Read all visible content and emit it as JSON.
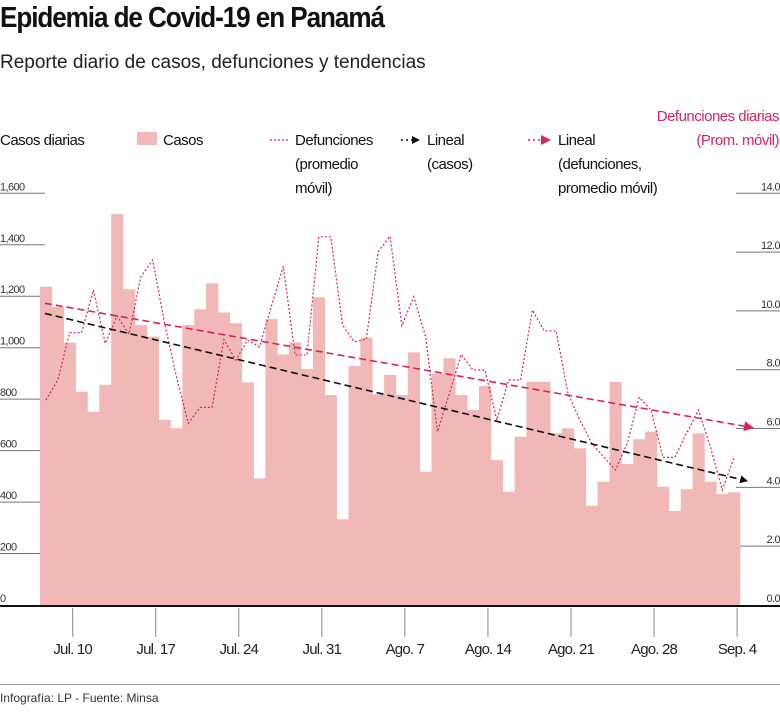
{
  "title": "Epidemia de Covid-19 en Panamá",
  "subtitle": "Reporte diario de casos, defunciones y tendencias",
  "footer": "Infografía: LP - Fuente: Minsa",
  "colors": {
    "bars": "#f0b8b6",
    "deaths": "#d8245a",
    "trend_cases": "#111111",
    "trend_deaths": "#d8245a"
  },
  "legend": {
    "left_axis_title": "Casos diarias",
    "casos": "Casos",
    "defunciones": [
      "Defunciones",
      "(promedio",
      "móvil)"
    ],
    "lineal_casos": [
      "Lineal",
      "(casos)"
    ],
    "lineal_defunciones": [
      "Lineal",
      "(defunciones,",
      "promedio móvil)"
    ],
    "right_axis_title": [
      "Defunciones diarias",
      "(Prom. móvil)"
    ]
  },
  "chart_data": {
    "type": "bar",
    "title": "Epidemia de Covid-19 en Panamá",
    "x_start": "Jul. 8",
    "x_end": "Sep. 4",
    "x_ticks": [
      "Jul. 10",
      "Jul. 17",
      "Jul. 24",
      "Jul. 31",
      "Ago. 7",
      "Ago. 14",
      "Ago. 21",
      "Ago. 28",
      "Sep. 4"
    ],
    "y_left": {
      "label": "Casos diarias",
      "range": [
        0,
        1600
      ],
      "ticks": [
        "0",
        "200",
        "400",
        "600",
        "800",
        "1,000",
        "1,200",
        "1,400",
        "1,600"
      ]
    },
    "y_right": {
      "label": "Defunciones diarias (Prom. móvil)",
      "range": [
        0,
        14
      ],
      "ticks": [
        "0.0",
        "2.0",
        "4.0",
        "6.0",
        "8.0",
        "10.0",
        "12.0",
        "14.0"
      ]
    },
    "series": [
      {
        "name": "Casos",
        "type": "bar",
        "axis": "left",
        "values": [
          1237,
          1159,
          1019,
          829,
          751,
          856,
          1519,
          1227,
          1088,
          1043,
          719,
          687,
          1088,
          1149,
          1250,
          1137,
          1095,
          865,
          492,
          1111,
          974,
          1021,
          917,
          1196,
          816,
          333,
          929,
          1039,
          819,
          894,
          816,
          982,
          518,
          898,
          959,
          816,
          758,
          851,
          563,
          440,
          654,
          867,
          867,
          667,
          687,
          609,
          386,
          479,
          867,
          548,
          644,
          674,
          460,
          365,
          450,
          667,
          479,
          431,
          438
        ]
      },
      {
        "name": "Defunciones (promedio móvil)",
        "type": "line",
        "style": "dotted",
        "axis": "right",
        "values": [
          6.97,
          7.65,
          9.26,
          9.26,
          10.71,
          8.9,
          9.83,
          9.21,
          11.16,
          11.73,
          9.58,
          7.76,
          6.18,
          6.72,
          6.72,
          9.03,
          8.33,
          9.01,
          8.78,
          10.16,
          11.52,
          8.5,
          8.5,
          12.52,
          12.52,
          9.52,
          8.95,
          9.03,
          12.01,
          12.54,
          9.5,
          10.48,
          9.12,
          5.89,
          7.19,
          8.52,
          7.99,
          7.99,
          6.29,
          7.65,
          7.65,
          10.03,
          9.32,
          9.32,
          7.2,
          6.29,
          5.5,
          5.04,
          4.59,
          5.5,
          7.06,
          6.63,
          5.02,
          5.02,
          5.84,
          6.63,
          5.38,
          3.91,
          5.02
        ]
      },
      {
        "name": "Lineal (casos)",
        "type": "trend",
        "axis": "left",
        "start": 1133,
        "end": 483
      },
      {
        "name": "Lineal (defunciones, promedio móvil)",
        "type": "trend",
        "axis": "right",
        "start": 10.26,
        "end": 6.04
      }
    ],
    "grid": false
  }
}
